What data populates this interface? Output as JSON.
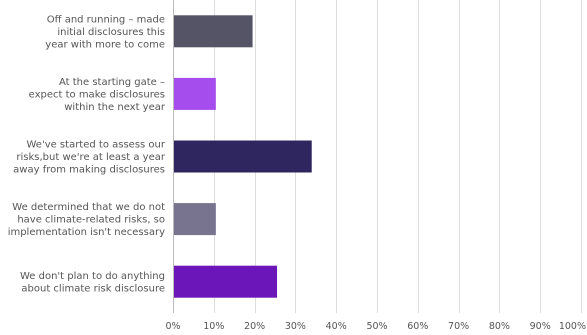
{
  "chart_data": {
    "type": "bar",
    "orientation": "horizontal",
    "categories": [
      [
        "Off and running – made",
        "initial disclosures this",
        "year with more to come"
      ],
      [
        "At the starting gate –",
        "expect to make disclosures",
        "within the next year"
      ],
      [
        "We've started to assess our",
        "risks,but we're at least a year",
        "away from making disclosures"
      ],
      [
        "We determined that we do not",
        "have climate-related risks, so",
        "implementation isn't necessary"
      ],
      [
        "We don't plan to do anything",
        "about climate risk disclosure"
      ]
    ],
    "values": [
      19.5,
      10.5,
      34,
      10.5,
      25.5
    ],
    "colors": [
      "#545466",
      "#a64ded",
      "#2f2660",
      "#78738f",
      "#6a16b8"
    ],
    "xlim": [
      0,
      100
    ],
    "ticks": [
      0,
      10,
      20,
      30,
      40,
      50,
      60,
      70,
      80,
      90,
      100
    ],
    "tick_labels": [
      "0%",
      "10%",
      "20%",
      "30%",
      "40%",
      "50%",
      "60%",
      "70%",
      "80%",
      "90%",
      "100%"
    ],
    "grid": true
  }
}
